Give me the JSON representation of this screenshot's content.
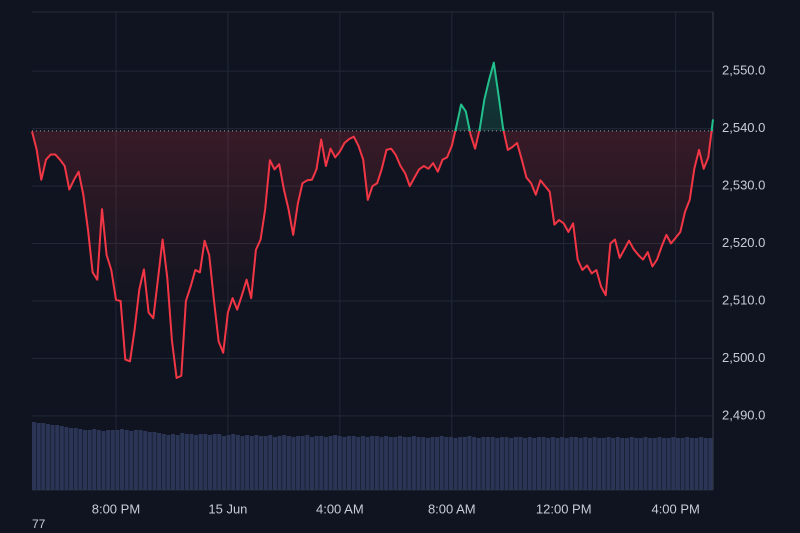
{
  "chart_data": {
    "type": "line",
    "corner_label": "77",
    "line_color_below": "#f23645",
    "line_color_above": "#22c08c",
    "volume_color": "#2b3656",
    "grid": true,
    "baseline": 2539.6,
    "xlim": [
      0,
      146
    ],
    "xticks": [
      {
        "value": 18,
        "label": "8:00 PM"
      },
      {
        "value": 42,
        "label": "15 Jun"
      },
      {
        "value": 66,
        "label": "4:00 AM"
      },
      {
        "value": 90,
        "label": "8:00 AM"
      },
      {
        "value": 114,
        "label": "12:00 PM"
      },
      {
        "value": 138,
        "label": "4:00 PM"
      }
    ],
    "ylim": [
      2477.1,
      2560.3
    ],
    "yticks": [
      {
        "value": 2490,
        "label": "2,490.0"
      },
      {
        "value": 2500,
        "label": "2,500.0"
      },
      {
        "value": 2510,
        "label": "2,510.0"
      },
      {
        "value": 2520,
        "label": "2,520.0"
      },
      {
        "value": 2530,
        "label": "2,530.0"
      },
      {
        "value": 2540,
        "label": "2,540.0"
      },
      {
        "value": 2550,
        "label": "2,550.0"
      }
    ],
    "values": [
      2539.5,
      2536.3,
      2531.1,
      2534.6,
      2535.5,
      2535.5,
      2534.6,
      2533.5,
      2529.4,
      2531.1,
      2532.5,
      2528.5,
      2522.4,
      2515.0,
      2513.7,
      2526.0,
      2518.0,
      2515.4,
      2510.2,
      2510.0,
      2499.8,
      2499.5,
      2505,
      2512,
      2515.5,
      2508,
      2507,
      2513.7,
      2520.7,
      2514,
      2503.2,
      2496.6,
      2497,
      2510,
      2512.5,
      2515.4,
      2515,
      2520.5,
      2518,
      2510.2,
      2503,
      2501,
      2508,
      2510.5,
      2508.5,
      2511,
      2513.7,
      2510.5,
      2518.9,
      2520.7,
      2526,
      2534.5,
      2532.9,
      2533.8,
      2529.4,
      2526,
      2521.5,
      2527,
      2530.5,
      2531,
      2531.1,
      2532.9,
      2538.1,
      2533.5,
      2536.5,
      2535,
      2536,
      2537.5,
      2538.2,
      2538.6,
      2537,
      2534.6,
      2527.6,
      2530,
      2530.5,
      2533,
      2536.3,
      2536.5,
      2535.4,
      2533.5,
      2532.2,
      2530,
      2531.5,
      2532.9,
      2533.5,
      2533,
      2534,
      2532.5,
      2534.6,
      2535,
      2537,
      2540.5,
      2544.2,
      2543,
      2539,
      2536.5,
      2540,
      2545.1,
      2548.5,
      2551.5,
      2546,
      2540,
      2536.3,
      2536.8,
      2537.5,
      2534.6,
      2531.5,
      2530.5,
      2528.5,
      2531,
      2530,
      2529,
      2523.3,
      2524.1,
      2523.5,
      2522,
      2523.5,
      2517.2,
      2515.4,
      2516.2,
      2514.8,
      2515.4,
      2512.5,
      2511.0,
      2520,
      2520.7,
      2517.5,
      2519,
      2520.5,
      2519,
      2518,
      2517.2,
      2518.5,
      2516,
      2517.2,
      2519.5,
      2521.5,
      2520,
      2521,
      2522,
      2525.5,
      2527.6,
      2533,
      2536.3,
      2533,
      2535,
      2541.6
    ],
    "volume": [
      68,
      67,
      67,
      66,
      65,
      65,
      64,
      63,
      62,
      62,
      61,
      60,
      60,
      61,
      60,
      59,
      60,
      60,
      60,
      61,
      60,
      59,
      60,
      60,
      59,
      58,
      58,
      57,
      56,
      55,
      56,
      55,
      57,
      56,
      56,
      55,
      56,
      56,
      55,
      56,
      56,
      54,
      55,
      56,
      55,
      54,
      55,
      54,
      55,
      54,
      54,
      55,
      53,
      54,
      55,
      54,
      53,
      54,
      54,
      55,
      53,
      54,
      54,
      53,
      54,
      55,
      54,
      53,
      54,
      54,
      53,
      54,
      53,
      54,
      54,
      53,
      54,
      53,
      53,
      54,
      53,
      53,
      54,
      53,
      53,
      52,
      53,
      53,
      54,
      53,
      53,
      52,
      53,
      53,
      54,
      53,
      52,
      53,
      53,
      53,
      52,
      53,
      53,
      52,
      53,
      53,
      52,
      53,
      52,
      53,
      53,
      52,
      53,
      52,
      53,
      52,
      53,
      53,
      52,
      53,
      52,
      53,
      52,
      52,
      53,
      52,
      53,
      52,
      52,
      53,
      52,
      52,
      53,
      52,
      52,
      53,
      52,
      52,
      53,
      52,
      52,
      53,
      52,
      52,
      53,
      52,
      52
    ]
  }
}
